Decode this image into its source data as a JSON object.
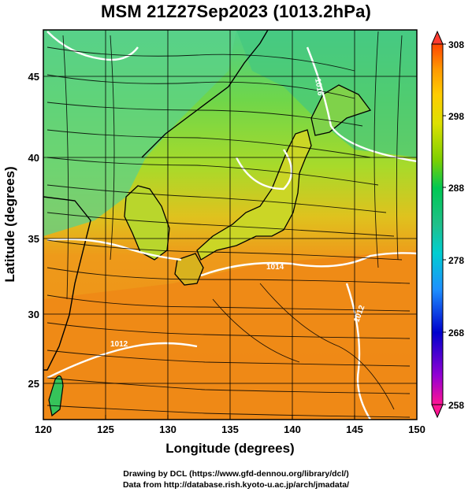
{
  "title": "MSM 21Z27Sep2023 (1013.2hPa)",
  "map": {
    "lon_range": [
      120,
      150
    ],
    "lat_range": [
      22.5,
      48
    ],
    "field": "potential temperature (color) with streamlines",
    "x_axis": {
      "label": "Longitude (degrees)",
      "ticks": [
        "120",
        "125",
        "130",
        "135",
        "140",
        "145",
        "150"
      ]
    },
    "y_axis": {
      "label": "Latitude (degrees)",
      "ticks": [
        "25",
        "30",
        "35",
        "40",
        "45"
      ]
    },
    "contour_labels": [
      "1012",
      "1014",
      "1016",
      "1012"
    ]
  },
  "colorbar": {
    "min": 258,
    "max": 308,
    "ticks": [
      "308",
      "298",
      "288",
      "278",
      "268",
      "258"
    ],
    "colors": [
      "#ff1493",
      "#9400d3",
      "#0000cd",
      "#1e90ff",
      "#00ced1",
      "#20b2aa",
      "#00c853",
      "#7fd000",
      "#ccdd00",
      "#ffcc00",
      "#ff9900",
      "#ff4500"
    ]
  },
  "credits": {
    "line1": "Drawing by DCL (https://www.gfd-dennou.org/library/dcl/)",
    "line2": "Data from http://database.rish.kyoto-u.ac.jp/arch/jmadata/"
  }
}
